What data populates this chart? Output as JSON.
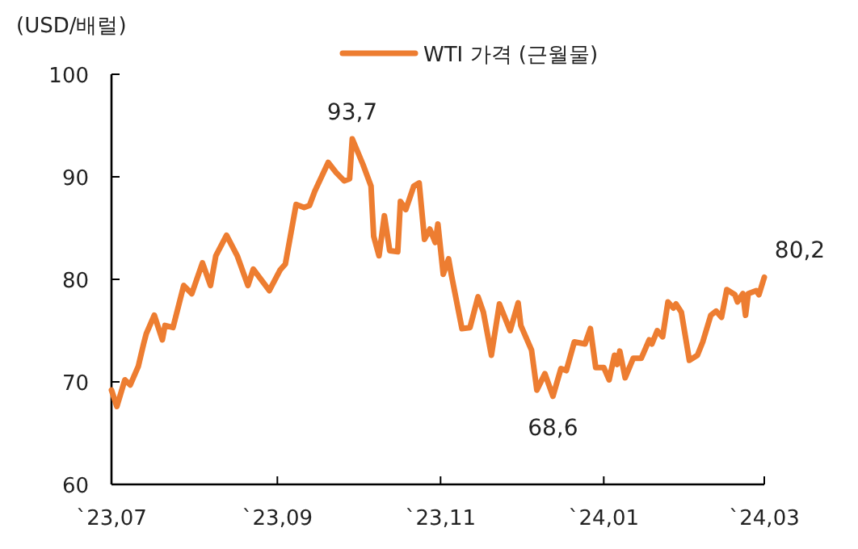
{
  "chart_data": {
    "type": "line",
    "ylabel": "(USD/배럴)",
    "x": [
      "2023-07-01",
      "2023-07-03",
      "2023-07-06",
      "2023-07-08",
      "2023-07-11",
      "2023-07-13",
      "2023-07-14",
      "2023-07-17",
      "2023-07-20",
      "2023-07-21",
      "2023-07-24",
      "2023-07-28",
      "2023-07-31",
      "2023-08-04",
      "2023-08-07",
      "2023-08-09",
      "2023-08-13",
      "2023-08-17",
      "2023-08-21",
      "2023-08-23",
      "2023-08-29",
      "2023-09-02",
      "2023-09-04",
      "2023-09-08",
      "2023-09-11",
      "2023-09-13",
      "2023-09-15",
      "2023-09-20",
      "2023-09-23",
      "2023-09-26",
      "2023-09-28",
      "2023-09-29",
      "2023-10-03",
      "2023-10-06",
      "2023-10-07",
      "2023-10-09",
      "2023-10-11",
      "2023-10-13",
      "2023-10-16",
      "2023-10-17",
      "2023-10-19",
      "2023-10-22",
      "2023-10-24",
      "2023-10-26",
      "2023-10-28",
      "2023-10-30",
      "2023-10-31",
      "2023-11-02",
      "2023-11-04",
      "2023-11-05",
      "2023-11-09",
      "2023-11-12",
      "2023-11-15",
      "2023-11-17",
      "2023-11-20",
      "2023-11-23",
      "2023-11-27",
      "2023-11-30",
      "2023-12-01",
      "2023-12-05",
      "2023-12-07",
      "2023-12-10",
      "2023-12-13",
      "2023-12-16",
      "2023-12-18",
      "2023-12-21",
      "2023-12-25",
      "2023-12-27",
      "2023-12-29",
      "2024-01-01",
      "2024-01-03",
      "2024-01-05",
      "2024-01-06",
      "2024-01-07",
      "2024-01-09",
      "2024-01-12",
      "2024-01-15",
      "2024-01-18",
      "2024-01-19",
      "2024-01-21",
      "2024-01-23",
      "2024-01-25",
      "2024-01-27",
      "2024-01-28",
      "2024-01-30",
      "2024-02-02",
      "2024-02-05",
      "2024-02-07",
      "2024-02-10",
      "2024-02-12",
      "2024-02-14",
      "2024-02-16",
      "2024-02-19",
      "2024-02-20",
      "2024-02-22",
      "2024-02-23",
      "2024-02-24",
      "2024-02-27",
      "2024-02-28",
      "2024-03-01"
    ],
    "series": [
      {
        "name": "WTI 가격 (근월물)",
        "color": "#ed7d31",
        "values": [
          69.2,
          67.6,
          70.2,
          69.7,
          71.5,
          73.7,
          74.7,
          76.5,
          74.1,
          75.5,
          75.3,
          79.4,
          78.6,
          81.6,
          79.4,
          82.3,
          84.3,
          82.3,
          79.4,
          81.0,
          78.9,
          80.9,
          81.5,
          87.3,
          87.0,
          87.2,
          88.6,
          91.4,
          90.4,
          89.6,
          89.8,
          93.7,
          91.2,
          89.1,
          84.2,
          82.3,
          86.2,
          82.8,
          82.7,
          87.6,
          86.8,
          89.1,
          89.4,
          83.9,
          84.9,
          83.6,
          85.4,
          80.5,
          82.0,
          80.5,
          75.2,
          75.3,
          78.3,
          76.8,
          72.6,
          77.6,
          75.0,
          77.7,
          75.5,
          73.1,
          69.2,
          70.8,
          68.6,
          71.3,
          71.1,
          73.9,
          73.7,
          75.2,
          71.4,
          71.4,
          70.2,
          72.6,
          71.7,
          73.0,
          70.4,
          72.3,
          72.3,
          74.1,
          73.7,
          75.0,
          74.4,
          77.8,
          77.2,
          77.6,
          76.8,
          72.1,
          72.6,
          73.9,
          76.5,
          76.9,
          76.3,
          79.0,
          78.5,
          77.8,
          78.6,
          76.5,
          78.6,
          78.9,
          78.5,
          80.2
        ]
      }
    ],
    "xlim": [
      "2023-07-01",
      "2024-03-01"
    ],
    "xticks": [
      {
        "value": "2023-07-01",
        "label": "`23,07"
      },
      {
        "value": "2023-09-01",
        "label": "`23,09"
      },
      {
        "value": "2023-11-01",
        "label": "`23,11"
      },
      {
        "value": "2024-01-01",
        "label": "`24,01"
      },
      {
        "value": "2024-03-01",
        "label": "`24,03"
      }
    ],
    "ylim": [
      60,
      100
    ],
    "yticks": [
      60,
      70,
      80,
      90,
      100
    ],
    "legend": "top",
    "marker": "none",
    "line_style": "solid",
    "annotations": [
      {
        "text": "93,7",
        "x": "2023-09-29",
        "y": 93.7
      },
      {
        "text": "68,6",
        "x": "2023-12-13",
        "y": 68.6
      },
      {
        "text": "80,2",
        "x": "2024-03-01",
        "y": 80.2
      }
    ]
  }
}
